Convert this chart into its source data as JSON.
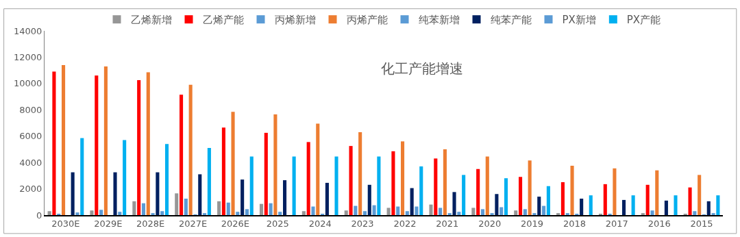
{
  "chart_data": {
    "type": "bar",
    "title": "化工产能增速",
    "categories": [
      "2030E",
      "2029E",
      "2028E",
      "2027E",
      "2026E",
      "2025",
      "2024",
      "2023",
      "2022",
      "2021",
      "2020",
      "2019",
      "2018",
      "2017",
      "2016",
      "2015"
    ],
    "series": [
      {
        "name": "乙烯新增",
        "color": "#969696",
        "values": [
          300,
          350,
          1050,
          1650,
          1050,
          850,
          300,
          350,
          550,
          800,
          550,
          350,
          150,
          100,
          150,
          100
        ]
      },
      {
        "name": "乙烯产能",
        "color": "#ff0000",
        "values": [
          10900,
          10600,
          10250,
          9150,
          6650,
          6250,
          5550,
          5250,
          4850,
          4300,
          3500,
          2900,
          2500,
          2350,
          2300,
          2100
        ]
      },
      {
        "name": "丙烯新增",
        "color": "#5b9bd5",
        "values": [
          100,
          400,
          900,
          1250,
          950,
          900,
          650,
          700,
          650,
          550,
          450,
          450,
          150,
          100,
          350,
          300
        ]
      },
      {
        "name": "丙烯产能",
        "color": "#ed7d31",
        "values": [
          11400,
          11300,
          10850,
          9900,
          7850,
          7650,
          6950,
          6300,
          5600,
          5000,
          4450,
          4150,
          3750,
          3550,
          3400,
          3050
        ]
      },
      {
        "name": "纯苯新增",
        "color": "#5b9bd5",
        "values": [
          0,
          0,
          150,
          50,
          250,
          250,
          100,
          300,
          300,
          150,
          150,
          150,
          100,
          0,
          0,
          50
        ]
      },
      {
        "name": "纯苯产能",
        "color": "#002060",
        "values": [
          3250,
          3250,
          3250,
          3100,
          2700,
          2650,
          2450,
          2300,
          2050,
          1750,
          1600,
          1400,
          1250,
          1150,
          1100,
          1050
        ]
      },
      {
        "name": "PX新增",
        "color": "#5b9bd5",
        "values": [
          200,
          250,
          300,
          150,
          450,
          0,
          0,
          750,
          650,
          250,
          600,
          700,
          0,
          0,
          0,
          150
        ]
      },
      {
        "name": "PX产能",
        "color": "#00b0f0",
        "values": [
          5850,
          5700,
          5400,
          5100,
          4450,
          4450,
          4450,
          4450,
          3700,
          3050,
          2800,
          2200,
          1500,
          1500,
          1500,
          1500
        ]
      }
    ],
    "ylim": [
      0,
      14000
    ],
    "yticks": [
      0,
      2000,
      4000,
      6000,
      8000,
      10000,
      12000,
      14000
    ],
    "legend": "top"
  }
}
